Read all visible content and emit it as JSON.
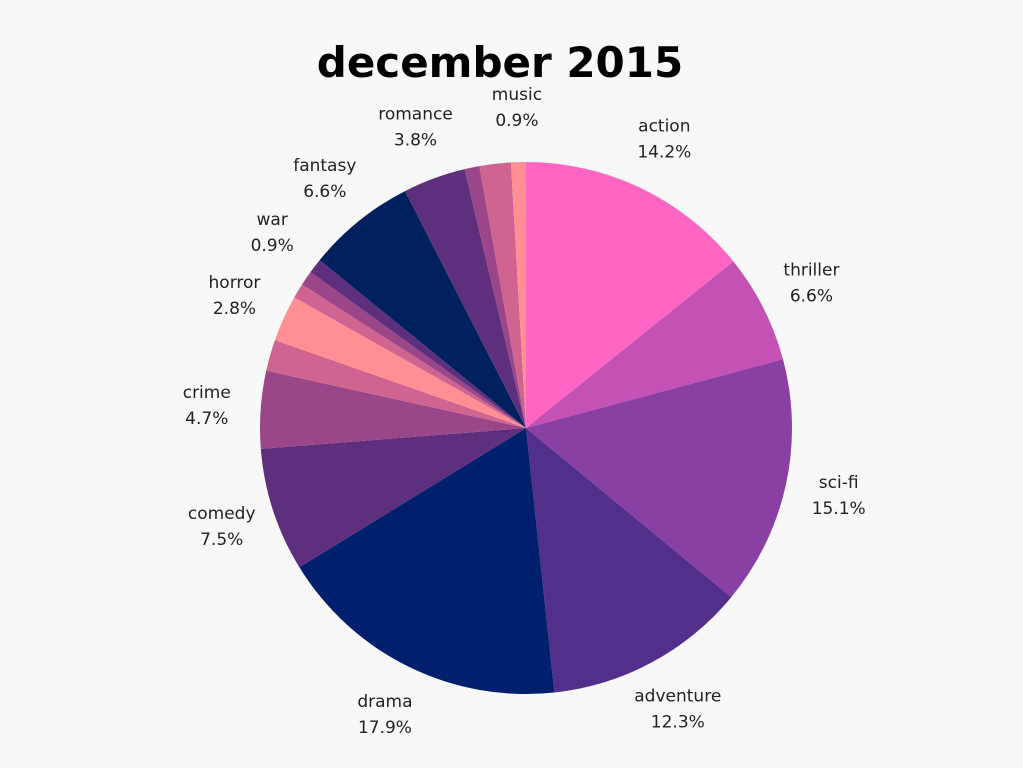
{
  "chart_data": {
    "type": "pie",
    "title": "december 2015",
    "slices": [
      {
        "label": "action",
        "value": 14.2,
        "text": "14.2%",
        "color": "#ff66c4"
      },
      {
        "label": "thriller",
        "value": 6.6,
        "text": "6.6%",
        "color": "#c452b5"
      },
      {
        "label": "sci-fi",
        "value": 15.1,
        "text": "15.1%",
        "color": "#8a40a2"
      },
      {
        "label": "adventure",
        "value": 12.3,
        "text": "12.3%",
        "color": "#532f8c"
      },
      {
        "label": "drama",
        "value": 17.9,
        "text": "17.9%",
        "color": "#00206e"
      },
      {
        "label": "comedy",
        "value": 7.5,
        "text": "7.5%",
        "color": "#5e2f7c"
      },
      {
        "label": "crime",
        "value": 4.7,
        "text": "4.7%",
        "color": "#9a4689"
      },
      {
        "label": null,
        "value": 1.9,
        "text": null,
        "color": "#d06490"
      },
      {
        "label": "horror",
        "value": 2.8,
        "text": "2.8%",
        "color": "#ff8f94"
      },
      {
        "label": null,
        "value": 0.9,
        "text": null,
        "color": "#d06490"
      },
      {
        "label": null,
        "value": 0.9,
        "text": null,
        "color": "#9a4689"
      },
      {
        "label": "war",
        "value": 0.9,
        "text": "0.9%",
        "color": "#5e2f7c"
      },
      {
        "label": "fantasy",
        "value": 6.6,
        "text": "6.6%",
        "color": "#00205e"
      },
      {
        "label": "romance",
        "value": 3.8,
        "text": "3.8%",
        "color": "#5e2f7c"
      },
      {
        "label": null,
        "value": 0.9,
        "text": null,
        "color": "#9a4689"
      },
      {
        "label": null,
        "value": 1.9,
        "text": null,
        "color": "#d06490"
      },
      {
        "label": "music",
        "value": 0.9,
        "text": "0.9%",
        "color": "#ff8f94"
      }
    ]
  }
}
